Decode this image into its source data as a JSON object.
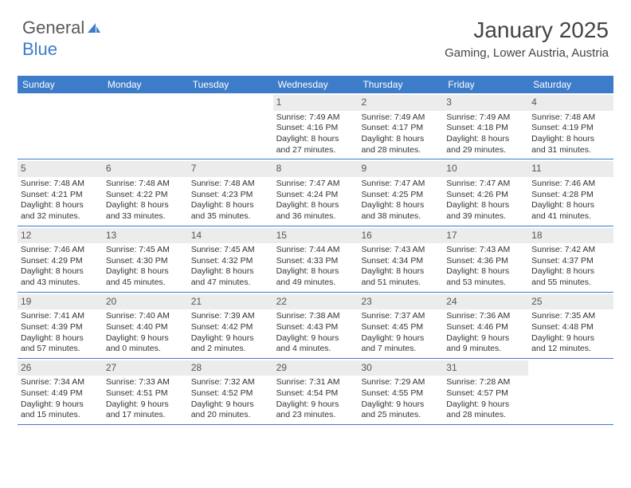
{
  "brand": {
    "part1": "General",
    "part2": "Blue"
  },
  "title": "January 2025",
  "location": "Gaming, Lower Austria, Austria",
  "header_bg": "#3d7cc9",
  "daynum_bg": "#ececec",
  "text_color": "#333333",
  "weekdays": [
    "Sunday",
    "Monday",
    "Tuesday",
    "Wednesday",
    "Thursday",
    "Friday",
    "Saturday"
  ],
  "weeks": [
    [
      {
        "day": "",
        "sunrise": "",
        "sunset": "",
        "daylight": ""
      },
      {
        "day": "",
        "sunrise": "",
        "sunset": "",
        "daylight": ""
      },
      {
        "day": "",
        "sunrise": "",
        "sunset": "",
        "daylight": ""
      },
      {
        "day": "1",
        "sunrise": "Sunrise: 7:49 AM",
        "sunset": "Sunset: 4:16 PM",
        "daylight": "Daylight: 8 hours and 27 minutes."
      },
      {
        "day": "2",
        "sunrise": "Sunrise: 7:49 AM",
        "sunset": "Sunset: 4:17 PM",
        "daylight": "Daylight: 8 hours and 28 minutes."
      },
      {
        "day": "3",
        "sunrise": "Sunrise: 7:49 AM",
        "sunset": "Sunset: 4:18 PM",
        "daylight": "Daylight: 8 hours and 29 minutes."
      },
      {
        "day": "4",
        "sunrise": "Sunrise: 7:48 AM",
        "sunset": "Sunset: 4:19 PM",
        "daylight": "Daylight: 8 hours and 31 minutes."
      }
    ],
    [
      {
        "day": "5",
        "sunrise": "Sunrise: 7:48 AM",
        "sunset": "Sunset: 4:21 PM",
        "daylight": "Daylight: 8 hours and 32 minutes."
      },
      {
        "day": "6",
        "sunrise": "Sunrise: 7:48 AM",
        "sunset": "Sunset: 4:22 PM",
        "daylight": "Daylight: 8 hours and 33 minutes."
      },
      {
        "day": "7",
        "sunrise": "Sunrise: 7:48 AM",
        "sunset": "Sunset: 4:23 PM",
        "daylight": "Daylight: 8 hours and 35 minutes."
      },
      {
        "day": "8",
        "sunrise": "Sunrise: 7:47 AM",
        "sunset": "Sunset: 4:24 PM",
        "daylight": "Daylight: 8 hours and 36 minutes."
      },
      {
        "day": "9",
        "sunrise": "Sunrise: 7:47 AM",
        "sunset": "Sunset: 4:25 PM",
        "daylight": "Daylight: 8 hours and 38 minutes."
      },
      {
        "day": "10",
        "sunrise": "Sunrise: 7:47 AM",
        "sunset": "Sunset: 4:26 PM",
        "daylight": "Daylight: 8 hours and 39 minutes."
      },
      {
        "day": "11",
        "sunrise": "Sunrise: 7:46 AM",
        "sunset": "Sunset: 4:28 PM",
        "daylight": "Daylight: 8 hours and 41 minutes."
      }
    ],
    [
      {
        "day": "12",
        "sunrise": "Sunrise: 7:46 AM",
        "sunset": "Sunset: 4:29 PM",
        "daylight": "Daylight: 8 hours and 43 minutes."
      },
      {
        "day": "13",
        "sunrise": "Sunrise: 7:45 AM",
        "sunset": "Sunset: 4:30 PM",
        "daylight": "Daylight: 8 hours and 45 minutes."
      },
      {
        "day": "14",
        "sunrise": "Sunrise: 7:45 AM",
        "sunset": "Sunset: 4:32 PM",
        "daylight": "Daylight: 8 hours and 47 minutes."
      },
      {
        "day": "15",
        "sunrise": "Sunrise: 7:44 AM",
        "sunset": "Sunset: 4:33 PM",
        "daylight": "Daylight: 8 hours and 49 minutes."
      },
      {
        "day": "16",
        "sunrise": "Sunrise: 7:43 AM",
        "sunset": "Sunset: 4:34 PM",
        "daylight": "Daylight: 8 hours and 51 minutes."
      },
      {
        "day": "17",
        "sunrise": "Sunrise: 7:43 AM",
        "sunset": "Sunset: 4:36 PM",
        "daylight": "Daylight: 8 hours and 53 minutes."
      },
      {
        "day": "18",
        "sunrise": "Sunrise: 7:42 AM",
        "sunset": "Sunset: 4:37 PM",
        "daylight": "Daylight: 8 hours and 55 minutes."
      }
    ],
    [
      {
        "day": "19",
        "sunrise": "Sunrise: 7:41 AM",
        "sunset": "Sunset: 4:39 PM",
        "daylight": "Daylight: 8 hours and 57 minutes."
      },
      {
        "day": "20",
        "sunrise": "Sunrise: 7:40 AM",
        "sunset": "Sunset: 4:40 PM",
        "daylight": "Daylight: 9 hours and 0 minutes."
      },
      {
        "day": "21",
        "sunrise": "Sunrise: 7:39 AM",
        "sunset": "Sunset: 4:42 PM",
        "daylight": "Daylight: 9 hours and 2 minutes."
      },
      {
        "day": "22",
        "sunrise": "Sunrise: 7:38 AM",
        "sunset": "Sunset: 4:43 PM",
        "daylight": "Daylight: 9 hours and 4 minutes."
      },
      {
        "day": "23",
        "sunrise": "Sunrise: 7:37 AM",
        "sunset": "Sunset: 4:45 PM",
        "daylight": "Daylight: 9 hours and 7 minutes."
      },
      {
        "day": "24",
        "sunrise": "Sunrise: 7:36 AM",
        "sunset": "Sunset: 4:46 PM",
        "daylight": "Daylight: 9 hours and 9 minutes."
      },
      {
        "day": "25",
        "sunrise": "Sunrise: 7:35 AM",
        "sunset": "Sunset: 4:48 PM",
        "daylight": "Daylight: 9 hours and 12 minutes."
      }
    ],
    [
      {
        "day": "26",
        "sunrise": "Sunrise: 7:34 AM",
        "sunset": "Sunset: 4:49 PM",
        "daylight": "Daylight: 9 hours and 15 minutes."
      },
      {
        "day": "27",
        "sunrise": "Sunrise: 7:33 AM",
        "sunset": "Sunset: 4:51 PM",
        "daylight": "Daylight: 9 hours and 17 minutes."
      },
      {
        "day": "28",
        "sunrise": "Sunrise: 7:32 AM",
        "sunset": "Sunset: 4:52 PM",
        "daylight": "Daylight: 9 hours and 20 minutes."
      },
      {
        "day": "29",
        "sunrise": "Sunrise: 7:31 AM",
        "sunset": "Sunset: 4:54 PM",
        "daylight": "Daylight: 9 hours and 23 minutes."
      },
      {
        "day": "30",
        "sunrise": "Sunrise: 7:29 AM",
        "sunset": "Sunset: 4:55 PM",
        "daylight": "Daylight: 9 hours and 25 minutes."
      },
      {
        "day": "31",
        "sunrise": "Sunrise: 7:28 AM",
        "sunset": "Sunset: 4:57 PM",
        "daylight": "Daylight: 9 hours and 28 minutes."
      },
      {
        "day": "",
        "sunrise": "",
        "sunset": "",
        "daylight": ""
      }
    ]
  ]
}
